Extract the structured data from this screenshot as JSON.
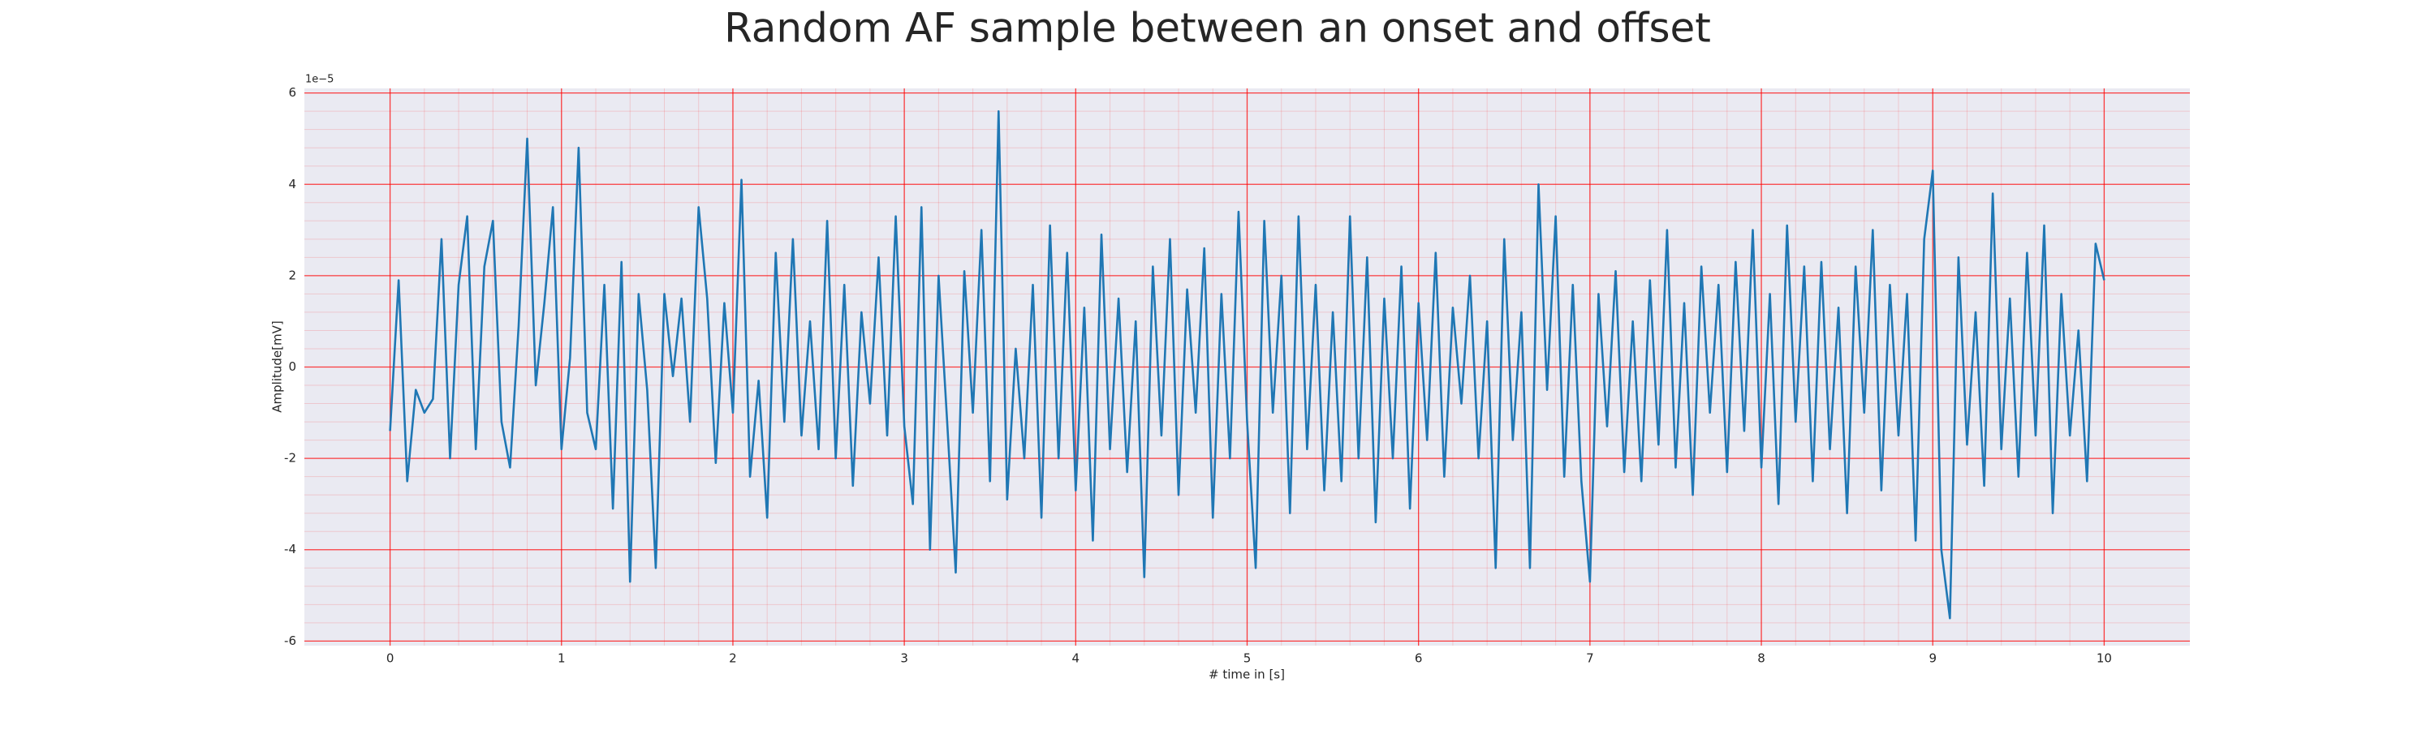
{
  "chart_data": {
    "type": "line",
    "title": "Random AF sample between an onset and offset",
    "xlabel": "# time in [s]",
    "ylabel": "Amplitude[mV]",
    "y_offset_text": "1e−5",
    "color": "#1f77b4",
    "grid": true,
    "grid_color": "#ff0000",
    "minor_grid": true,
    "background": "#eaeaf2",
    "xlim": [
      -0.5,
      10.5
    ],
    "ylim": [
      -6.1,
      6.1
    ],
    "xticks": [
      0,
      1,
      2,
      3,
      4,
      5,
      6,
      7,
      8,
      9,
      10
    ],
    "yticks": [
      -6,
      -4,
      -2,
      0,
      2,
      4,
      6
    ],
    "x": [
      0,
      0.05,
      0.1,
      0.15,
      0.2,
      0.25,
      0.3,
      0.35,
      0.4,
      0.45,
      0.5,
      0.55,
      0.6,
      0.65,
      0.7,
      0.75,
      0.8,
      0.85,
      0.9,
      0.95,
      1,
      1.05,
      1.1,
      1.15,
      1.2,
      1.25,
      1.3,
      1.35,
      1.4,
      1.45,
      1.5,
      1.55,
      1.6,
      1.65,
      1.7,
      1.75,
      1.8,
      1.85,
      1.9,
      1.95,
      2,
      2.05,
      2.1,
      2.15,
      2.2,
      2.25,
      2.3,
      2.35,
      2.4,
      2.45,
      2.5,
      2.55,
      2.6,
      2.65,
      2.7,
      2.75,
      2.8,
      2.85,
      2.9,
      2.95,
      3,
      3.05,
      3.1,
      3.15,
      3.2,
      3.25,
      3.3,
      3.35,
      3.4,
      3.45,
      3.5,
      3.55,
      3.6,
      3.65,
      3.7,
      3.75,
      3.8,
      3.85,
      3.9,
      3.95,
      4,
      4.05,
      4.1,
      4.15,
      4.2,
      4.25,
      4.3,
      4.35,
      4.4,
      4.45,
      4.5,
      4.55,
      4.6,
      4.65,
      4.7,
      4.75,
      4.8,
      4.85,
      4.9,
      4.95,
      5,
      5.05,
      5.1,
      5.15,
      5.2,
      5.25,
      5.3,
      5.35,
      5.4,
      5.45,
      5.5,
      5.55,
      5.6,
      5.65,
      5.7,
      5.75,
      5.8,
      5.85,
      5.9,
      5.95,
      6,
      6.05,
      6.1,
      6.15,
      6.2,
      6.25,
      6.3,
      6.35,
      6.4,
      6.45,
      6.5,
      6.55,
      6.6,
      6.65,
      6.7,
      6.75,
      6.8,
      6.85,
      6.9,
      6.95,
      7,
      7.05,
      7.1,
      7.15,
      7.2,
      7.25,
      7.3,
      7.35,
      7.4,
      7.45,
      7.5,
      7.55,
      7.6,
      7.65,
      7.7,
      7.75,
      7.8,
      7.85,
      7.9,
      7.95,
      8,
      8.05,
      8.1,
      8.15,
      8.2,
      8.25,
      8.3,
      8.35,
      8.4,
      8.45,
      8.5,
      8.55,
      8.6,
      8.65,
      8.7,
      8.75,
      8.8,
      8.85,
      8.9,
      8.95,
      9,
      9.05,
      9.1,
      9.15,
      9.2,
      9.25,
      9.3,
      9.35,
      9.4,
      9.45,
      9.5,
      9.55,
      9.6,
      9.65,
      9.7,
      9.75,
      9.8,
      9.85,
      9.9,
      9.95,
      10
    ],
    "values": [
      -1.4,
      1.9,
      -2.5,
      -0.5,
      -1.0,
      -0.7,
      2.8,
      -2.0,
      1.8,
      3.3,
      -1.8,
      2.2,
      3.2,
      -1.2,
      -2.2,
      0.9,
      5.0,
      -0.4,
      1.4,
      3.5,
      -1.8,
      0.2,
      4.8,
      -1.0,
      -1.8,
      1.8,
      -3.1,
      2.3,
      -4.7,
      1.6,
      -0.5,
      -4.4,
      1.6,
      -0.2,
      1.5,
      -1.2,
      3.5,
      1.5,
      -2.1,
      1.4,
      -1.0,
      4.1,
      -2.4,
      -0.3,
      -3.3,
      2.5,
      -1.2,
      2.8,
      -1.5,
      1.0,
      -1.8,
      3.2,
      -2.0,
      1.8,
      -2.6,
      1.2,
      -0.8,
      2.4,
      -1.5,
      3.3,
      -1.3,
      -3.0,
      3.5,
      -4.0,
      2.0,
      -1.2,
      -4.5,
      2.1,
      -1.0,
      3.0,
      -2.5,
      5.6,
      -2.9,
      0.4,
      -2.0,
      1.8,
      -3.3,
      3.1,
      -2.0,
      2.5,
      -2.7,
      1.3,
      -3.8,
      2.9,
      -1.8,
      1.5,
      -2.3,
      1.0,
      -4.6,
      2.2,
      -1.5,
      2.8,
      -2.8,
      1.7,
      -1.0,
      2.6,
      -3.3,
      1.6,
      -2.0,
      3.4,
      -1.2,
      -4.4,
      3.2,
      -1.0,
      2.0,
      -3.2,
      3.3,
      -1.8,
      1.8,
      -2.7,
      1.2,
      -2.5,
      3.3,
      -2.0,
      2.4,
      -3.4,
      1.5,
      -2.0,
      2.2,
      -3.1,
      1.4,
      -1.6,
      2.5,
      -2.4,
      1.3,
      -0.8,
      2.0,
      -2.0,
      1.0,
      -4.4,
      2.8,
      -1.6,
      1.2,
      -4.4,
      4.0,
      -0.5,
      3.3,
      -2.4,
      1.8,
      -2.5,
      -4.7,
      1.6,
      -1.3,
      2.1,
      -2.3,
      1.0,
      -2.5,
      1.9,
      -1.7,
      3.0,
      -2.2,
      1.4,
      -2.8,
      2.2,
      -1.0,
      1.8,
      -2.3,
      2.3,
      -1.4,
      3.0,
      -2.2,
      1.6,
      -3.0,
      3.1,
      -1.2,
      2.2,
      -2.5,
      2.3,
      -1.8,
      1.3,
      -3.2,
      2.2,
      -1.0,
      3.0,
      -2.7,
      1.8,
      -1.5,
      1.6,
      -3.8,
      2.8,
      4.3,
      -4.0,
      -5.5,
      2.4,
      -1.7,
      1.2,
      -2.6,
      3.8,
      -1.8,
      1.5,
      -2.4,
      2.5,
      -1.5,
      3.1,
      -3.2,
      1.6,
      -1.5,
      0.8,
      -2.5,
      2.7,
      1.9
    ]
  }
}
